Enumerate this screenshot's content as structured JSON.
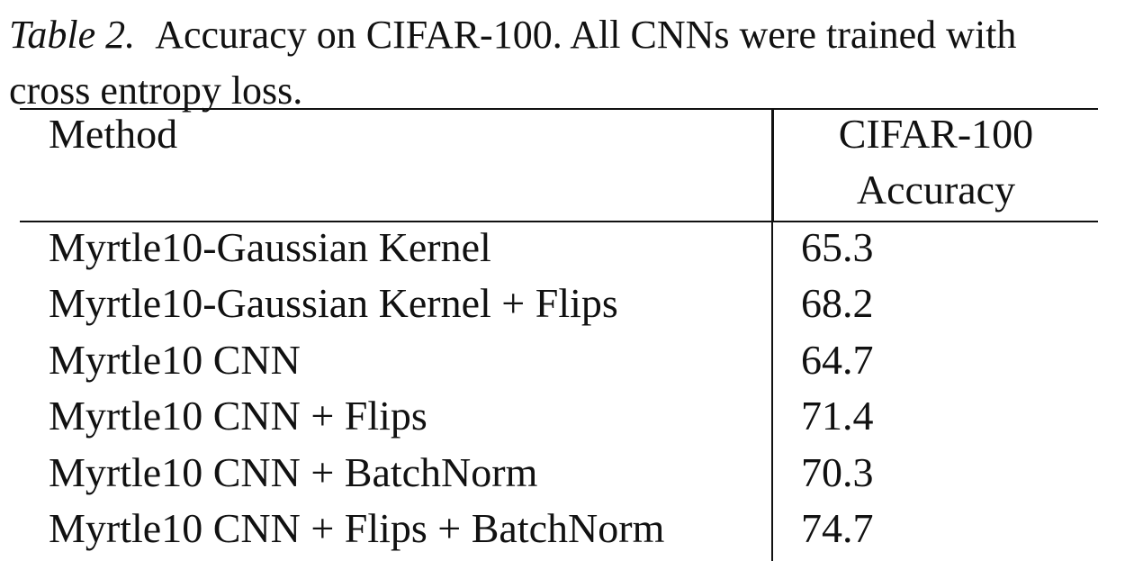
{
  "caption": {
    "label": "Table 2.",
    "text_line1": "Accuracy on CIFAR-100. All CNNs were trained with",
    "text_line2": "cross entropy loss."
  },
  "table": {
    "headers": {
      "method": "Method",
      "accuracy_line1": "CIFAR-100",
      "accuracy_line2": "Accuracy"
    },
    "rows": [
      {
        "method": "Myrtle10-Gaussian Kernel",
        "accuracy": "65.3"
      },
      {
        "method": "Myrtle10-Gaussian Kernel + Flips",
        "accuracy": "68.2"
      },
      {
        "method": "Myrtle10 CNN",
        "accuracy": "64.7"
      },
      {
        "method": "Myrtle10 CNN + Flips",
        "accuracy": "71.4"
      },
      {
        "method": "Myrtle10 CNN + BatchNorm",
        "accuracy": "70.3"
      },
      {
        "method": "Myrtle10 CNN + Flips + BatchNorm",
        "accuracy": "74.7"
      }
    ]
  }
}
